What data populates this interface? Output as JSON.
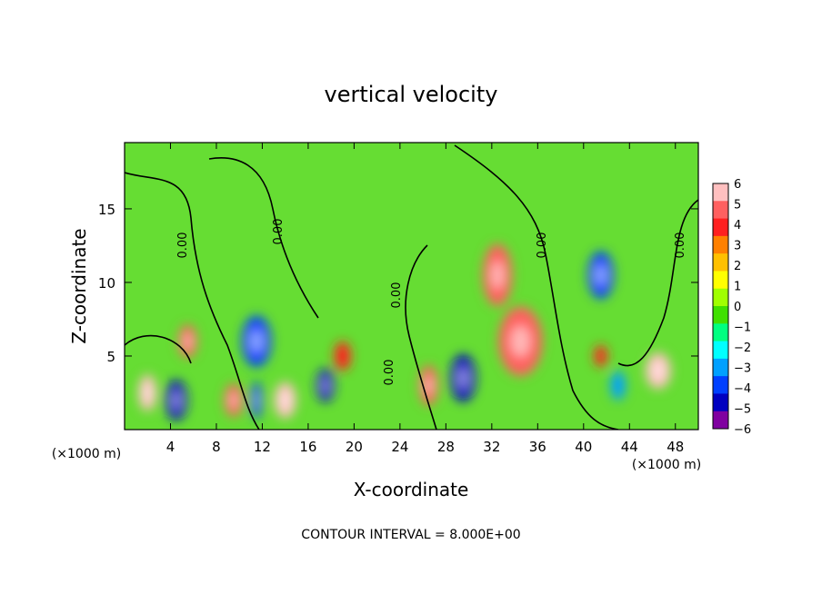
{
  "chart_data": {
    "type": "heatmap",
    "title": "vertical velocity",
    "xlabel": "X-coordinate",
    "ylabel": "Z-coordinate",
    "x_unit": "(×1000 m)",
    "x_unit_right": "(×1000 m)",
    "footer": "CONTOUR INTERVAL = 8.000E+00",
    "xlim": [
      0,
      50
    ],
    "ylim": [
      0,
      19.5
    ],
    "x_ticks": [
      4,
      8,
      12,
      16,
      20,
      24,
      28,
      32,
      36,
      40,
      44,
      48
    ],
    "y_ticks": [
      5,
      10,
      15
    ],
    "colorbar": {
      "ticks": [
        6,
        5,
        4,
        3,
        2,
        1,
        0,
        -1,
        -2,
        -3,
        -4,
        -5,
        -6
      ],
      "colors": [
        "#ffc0c0",
        "#ff6060",
        "#ff2020",
        "#ff8000",
        "#ffc000",
        "#ffff00",
        "#a0ff00",
        "#40e000",
        "#00ff80",
        "#00ffff",
        "#00a0ff",
        "#0040ff",
        "#0000c0",
        "#8000a0"
      ]
    },
    "zero_contour_label": "0.00",
    "features": [
      {
        "x": 32.5,
        "z": 10.5,
        "value": 5
      },
      {
        "x": 34.5,
        "z": 6.0,
        "value": 5
      },
      {
        "x": 41.5,
        "z": 10.5,
        "value": -5
      },
      {
        "x": 29.5,
        "z": 3.5,
        "value": -6
      },
      {
        "x": 2.0,
        "z": 2.5,
        "value": 6
      },
      {
        "x": 4.5,
        "z": 2.0,
        "value": -6
      },
      {
        "x": 5.5,
        "z": 6.0,
        "value": 5
      },
      {
        "x": 11.5,
        "z": 6.0,
        "value": -5
      },
      {
        "x": 14.0,
        "z": 2.0,
        "value": 6
      },
      {
        "x": 9.5,
        "z": 2.0,
        "value": 5
      },
      {
        "x": 17.5,
        "z": 3.0,
        "value": -6
      },
      {
        "x": 19.0,
        "z": 5.0,
        "value": 4
      },
      {
        "x": 26.5,
        "z": 3.0,
        "value": 5
      },
      {
        "x": 46.5,
        "z": 4.0,
        "value": 6
      },
      {
        "x": 41.5,
        "z": 5.0,
        "value": 4
      },
      {
        "x": 43.0,
        "z": 3.0,
        "value": -4
      },
      {
        "x": 11.5,
        "z": 2.0,
        "value": -5
      }
    ]
  }
}
